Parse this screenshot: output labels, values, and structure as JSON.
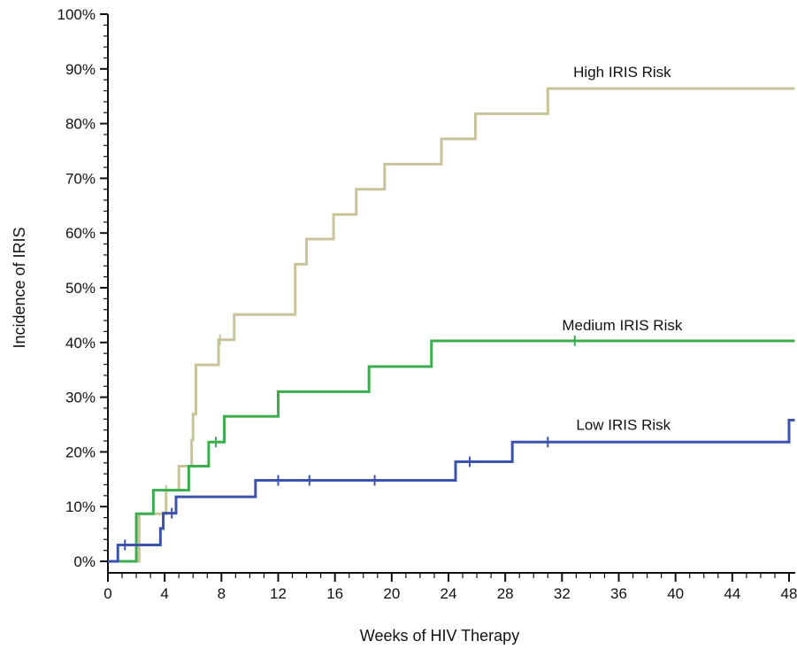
{
  "chart_data": {
    "type": "line",
    "step": true,
    "xlabel": "Weeks of HIV Therapy",
    "ylabel": "Incidence of IRIS",
    "xlim": [
      0,
      48
    ],
    "ylim": [
      0,
      100
    ],
    "x_ticks": [
      0,
      4,
      8,
      12,
      16,
      20,
      24,
      28,
      32,
      36,
      40,
      44,
      48
    ],
    "x_tick_labels": [
      "0",
      "4",
      "8",
      "12",
      "16",
      "20",
      "24",
      "28",
      "32",
      "36",
      "40",
      "44",
      "48"
    ],
    "y_ticks": [
      0,
      10,
      20,
      30,
      40,
      50,
      60,
      70,
      80,
      90,
      100
    ],
    "y_tick_labels": [
      "0%",
      "10%",
      "20%",
      "30%",
      "40%",
      "50%",
      "60%",
      "70%",
      "80%",
      "90%",
      "100%"
    ],
    "grid": false,
    "series": [
      {
        "name": "High IRIS Risk",
        "color": "#c8c49a",
        "x": [
          0,
          1.8,
          2.2,
          4.1,
          4.8,
          5.0,
          5.9,
          6.0,
          6.2,
          7.8,
          8.9,
          13.2,
          13.4,
          14.0,
          15.9,
          17.5,
          19.5,
          23.5,
          25.9,
          31.0,
          48.4
        ],
        "y": [
          0,
          0,
          8.7,
          13.0,
          13.0,
          17.4,
          22.2,
          26.9,
          35.9,
          40.5,
          45.1,
          54.3,
          54.3,
          58.9,
          63.4,
          68.0,
          72.6,
          77.2,
          81.8,
          86.4,
          86.4
        ],
        "censor_x": [
          4.1,
          7.9
        ],
        "censor_y": [
          13.0,
          40.5
        ]
      },
      {
        "name": "Medium IRIS Risk",
        "color": "#3cad4f",
        "x": [
          0,
          1.8,
          2.0,
          3.2,
          5.7,
          7.1,
          8.2,
          12.0,
          18.4,
          22.8,
          48.4
        ],
        "y": [
          0,
          0,
          8.7,
          13.0,
          17.4,
          21.8,
          26.5,
          31.0,
          35.6,
          40.3,
          40.3
        ],
        "censor_x": [
          7.6,
          32.9
        ],
        "censor_y": [
          21.8,
          40.3
        ]
      },
      {
        "name": "Low IRIS Risk",
        "color": "#3b53ac",
        "x": [
          0,
          0.7,
          1.8,
          2.2,
          3.7,
          3.9,
          4.8,
          10.4,
          24.5,
          28.5,
          48.0,
          48.4
        ],
        "y": [
          0,
          3.0,
          3.0,
          3.0,
          6.0,
          8.8,
          11.8,
          14.8,
          18.2,
          21.8,
          25.8,
          25.8
        ],
        "censor_x": [
          1.2,
          4.5,
          12.0,
          14.2,
          18.8,
          25.5,
          31.0
        ],
        "censor_y": [
          3.0,
          8.8,
          14.8,
          14.8,
          14.8,
          18.2,
          21.8
        ]
      }
    ],
    "annotations": [
      {
        "text": "High IRIS Risk",
        "x": 32.8,
        "y": 88.5
      },
      {
        "text": "Medium IRIS Risk",
        "x": 32.0,
        "y": 42.2
      },
      {
        "text": "Low IRIS Risk",
        "x": 33.0,
        "y": 24.0
      }
    ]
  }
}
